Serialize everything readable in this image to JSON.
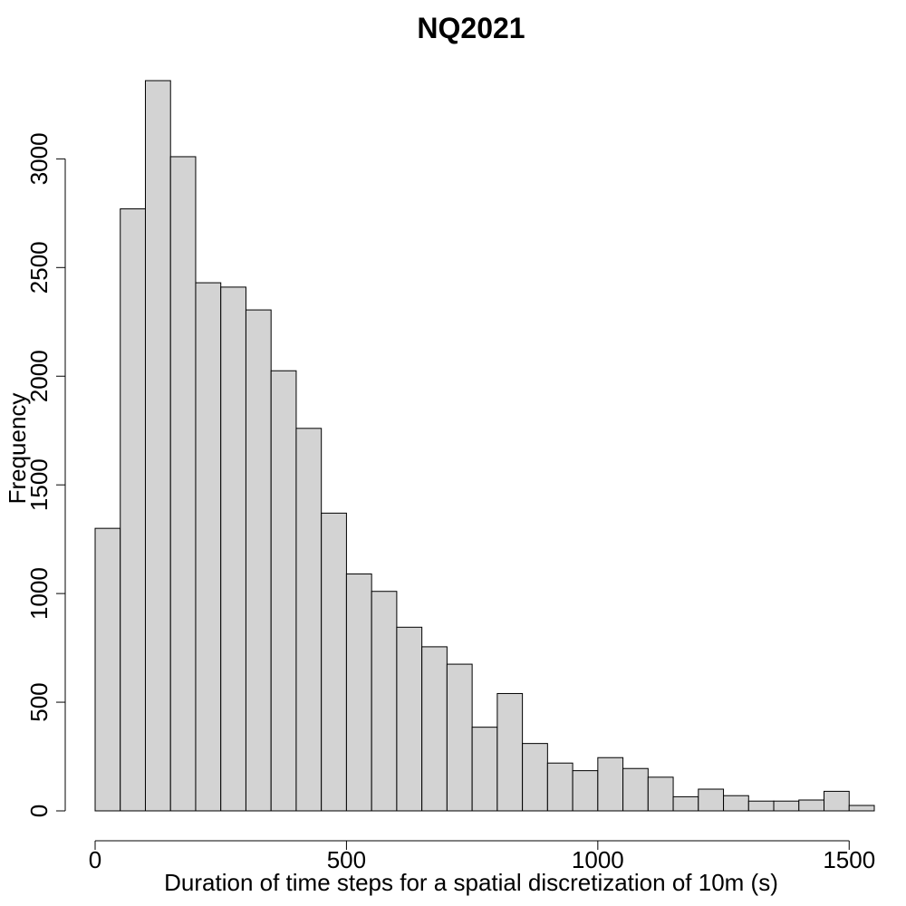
{
  "chart_data": {
    "type": "bar",
    "title": "NQ2021",
    "xlabel": "Duration of time steps for a spatial discretization of 10m (s)",
    "ylabel": "Frequency",
    "bin_width": 50,
    "bin_start": 0,
    "values": [
      1300,
      2770,
      3360,
      3010,
      2430,
      2410,
      2305,
      2025,
      1760,
      1370,
      1090,
      1010,
      845,
      755,
      675,
      385,
      540,
      310,
      220,
      185,
      245,
      195,
      155,
      65,
      100,
      70,
      45,
      45,
      50,
      90,
      25
    ],
    "xlim": [
      0,
      1550
    ],
    "ylim": [
      0,
      3360
    ],
    "x_ticks": [
      0,
      500,
      1000,
      1500
    ],
    "y_ticks": [
      0,
      500,
      1000,
      1500,
      2000,
      2500,
      3000
    ],
    "bar_color": "#d3d3d3",
    "grid": false,
    "legend": "none"
  }
}
